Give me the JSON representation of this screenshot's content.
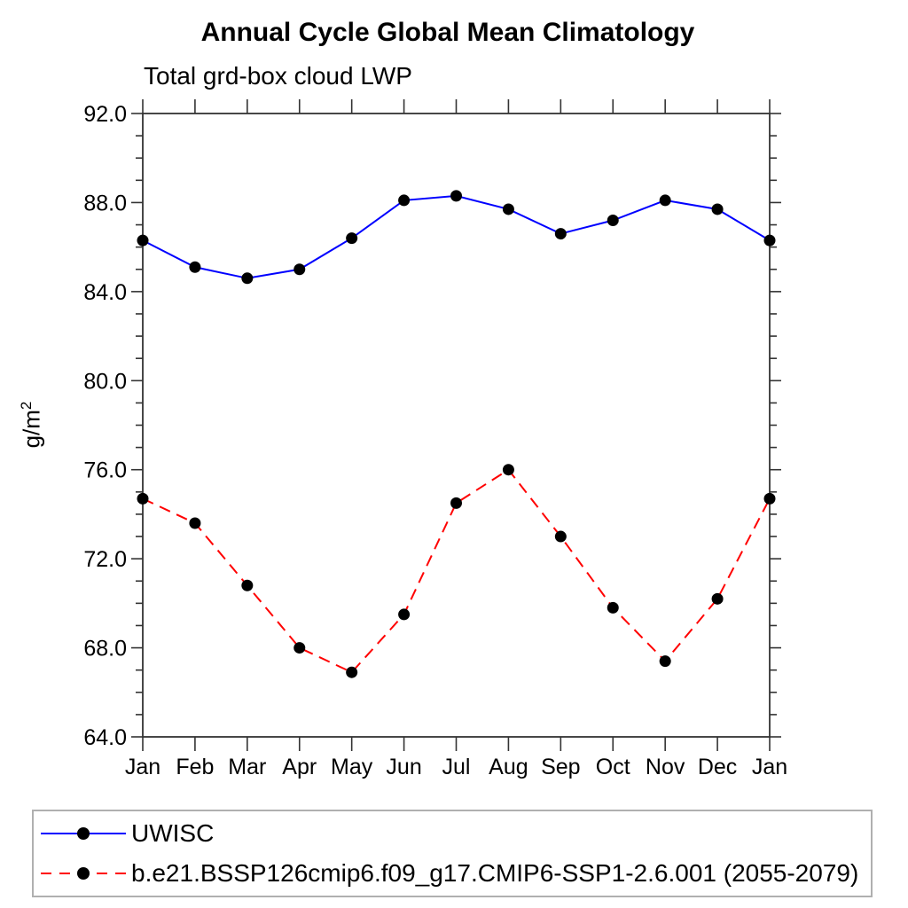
{
  "page": {
    "background": "#ffffff"
  },
  "chart_data": {
    "type": "line",
    "title": "Annual Cycle Global Mean Climatology",
    "subtitle": "Total grd-box cloud LWP",
    "xlabel": "",
    "ylabel": "g/m²",
    "ylabel_base": "g/m",
    "ylabel_sup": "2",
    "categories": [
      "Jan",
      "Feb",
      "Mar",
      "Apr",
      "May",
      "Jun",
      "Jul",
      "Aug",
      "Sep",
      "Oct",
      "Nov",
      "Dec",
      "Jan"
    ],
    "ylim": [
      64,
      92
    ],
    "ytick_values": [
      64,
      68,
      72,
      76,
      80,
      84,
      88,
      92
    ],
    "ytick_labels": [
      "64.0",
      "68.0",
      "72.0",
      "76.0",
      "80.0",
      "84.0",
      "88.0",
      "92.0"
    ],
    "ytick_minor_step": 1,
    "grid": false,
    "legend_position": "bottom",
    "axis_color": "#333333",
    "marker_color": "#000000",
    "series": [
      {
        "name": "UWISC",
        "color": "#0000ff",
        "line_style": "solid",
        "marker": "circle",
        "values": [
          86.3,
          85.1,
          84.6,
          85.0,
          86.4,
          88.1,
          88.3,
          87.7,
          86.6,
          87.2,
          88.1,
          87.7,
          86.3
        ]
      },
      {
        "name": "b.e21.BSSP126cmip6.f09_g17.CMIP6-SSP1-2.6.001 (2055-2079)",
        "color": "#ff0000",
        "line_style": "dashed",
        "marker": "circle",
        "values": [
          74.7,
          73.6,
          70.8,
          68.0,
          66.9,
          69.5,
          74.5,
          76.0,
          73.0,
          69.8,
          67.4,
          70.2,
          74.7
        ]
      }
    ]
  }
}
